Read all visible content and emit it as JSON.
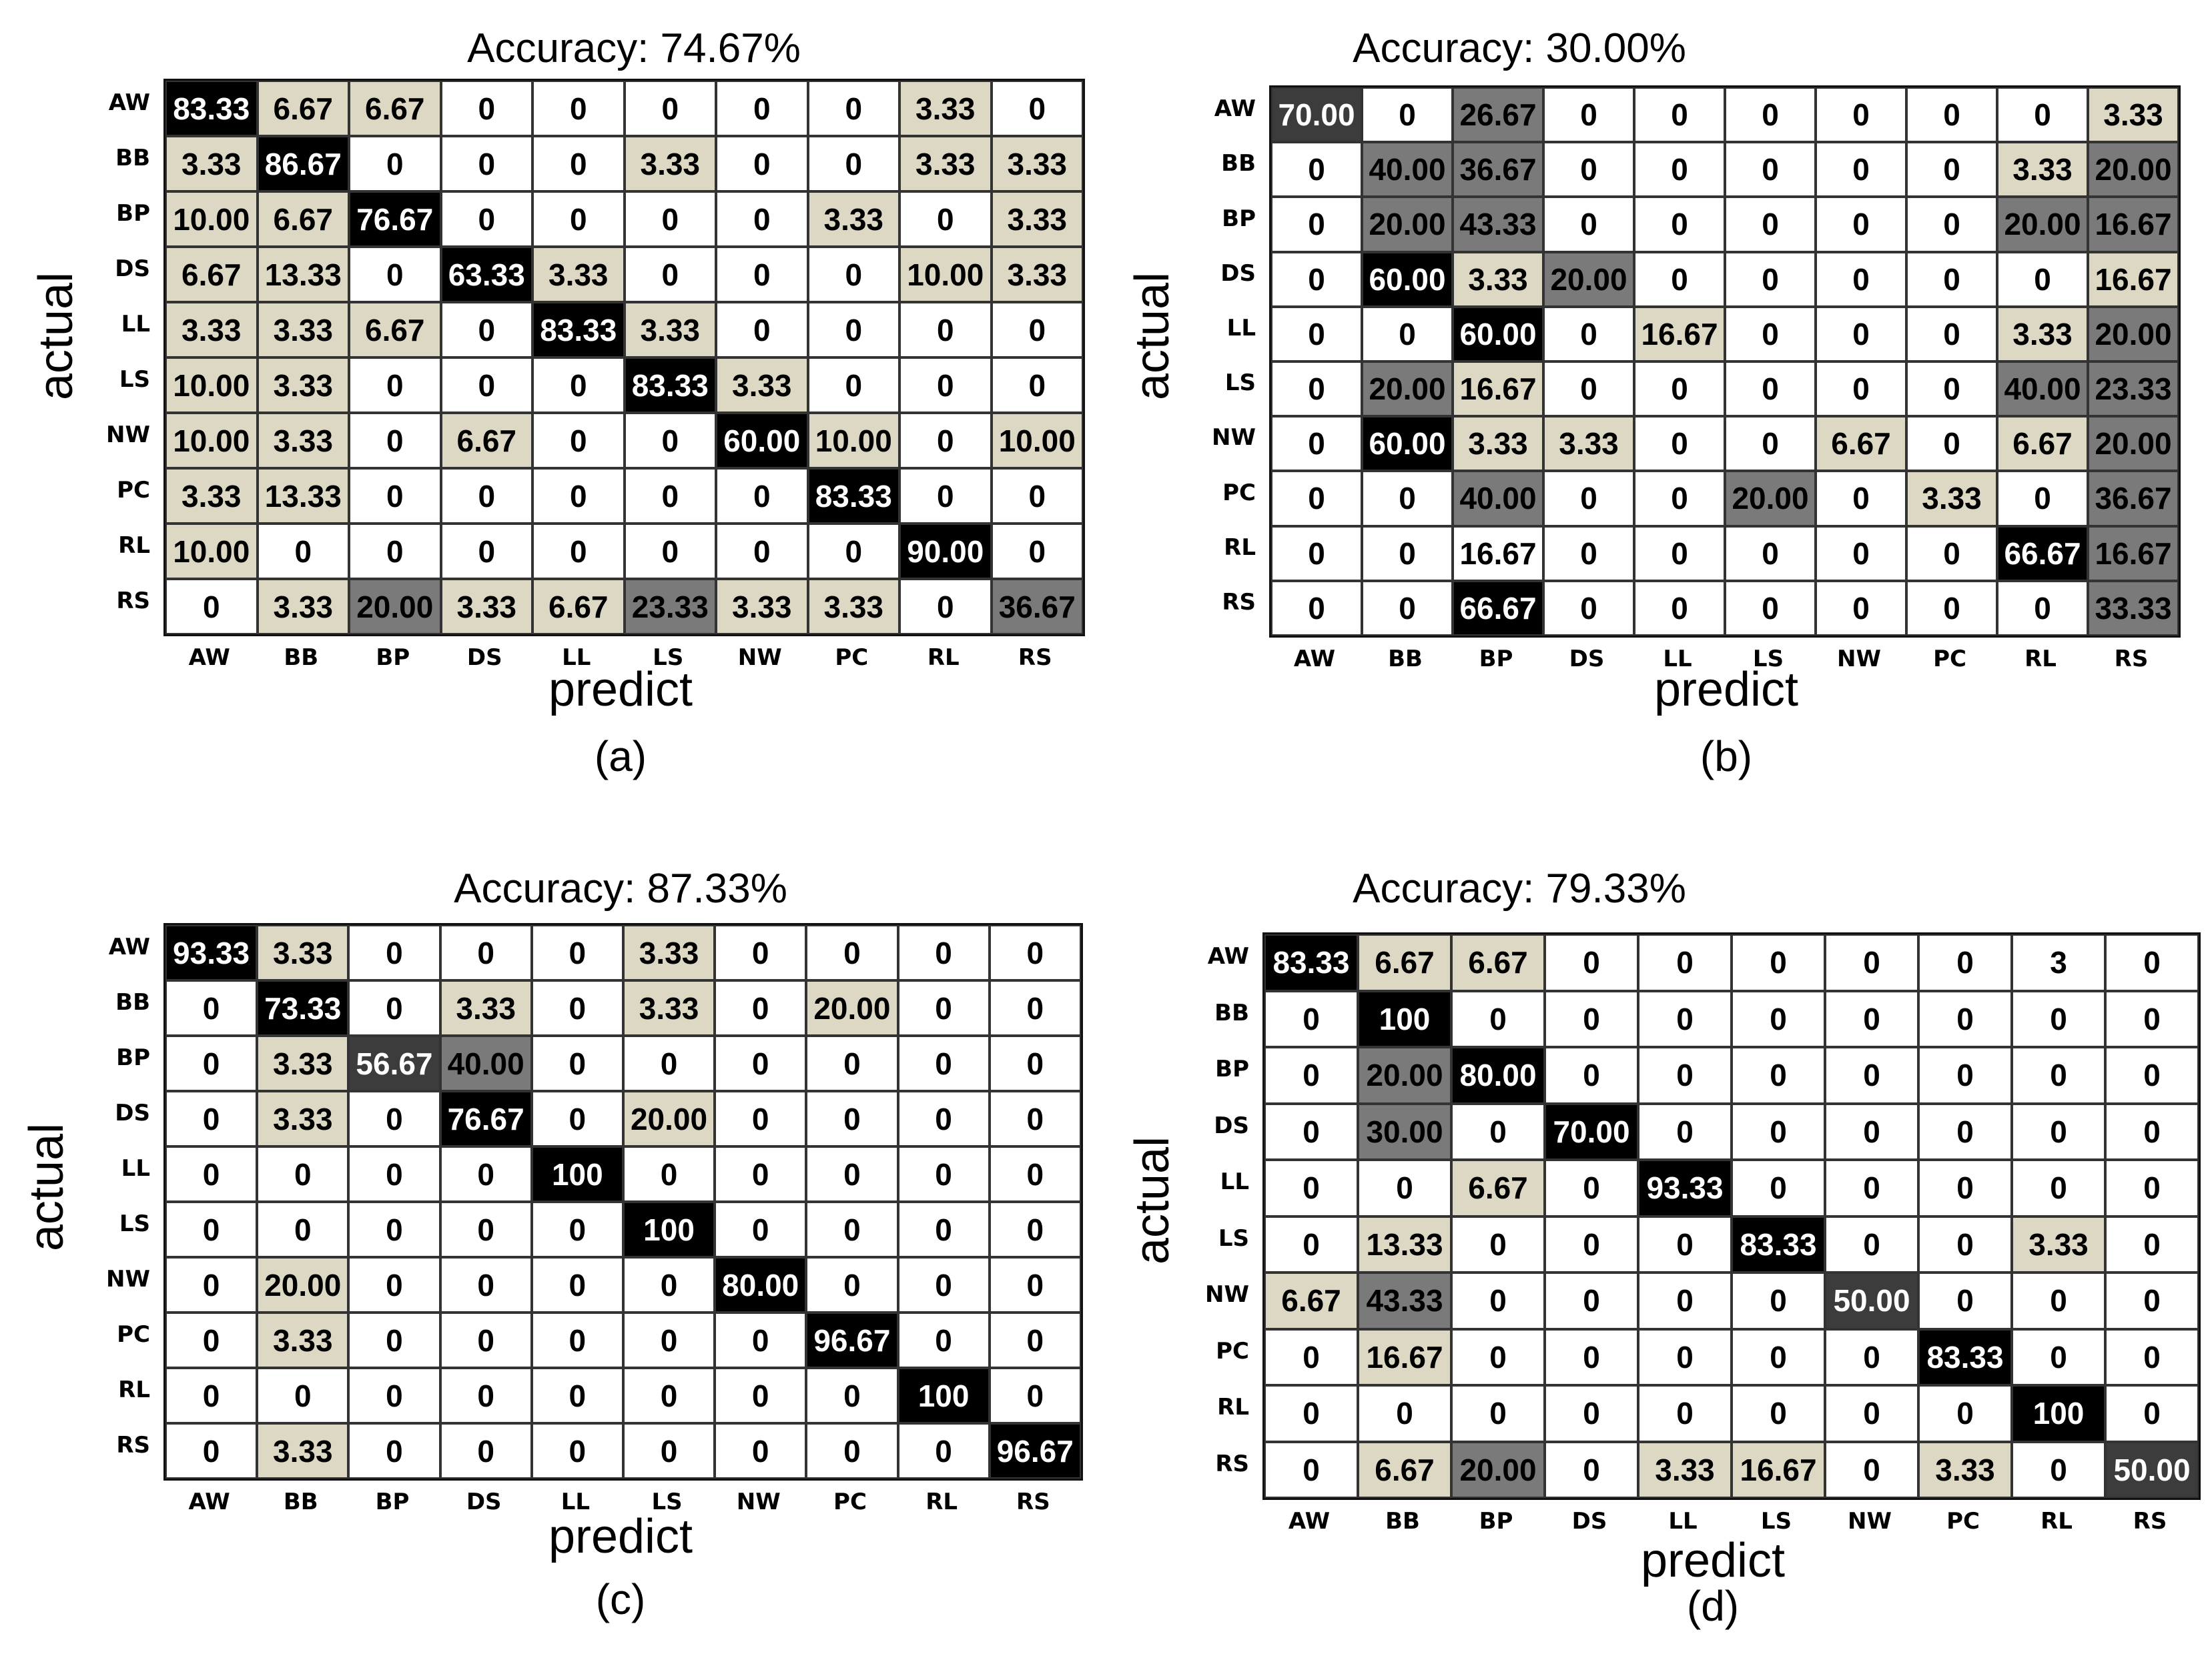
{
  "figure": {
    "labels": [
      "AW",
      "BB",
      "BP",
      "DS",
      "LL",
      "LS",
      "NW",
      "PC",
      "RL",
      "RS"
    ],
    "xlabel": "predict",
    "ylabel": "actual"
  },
  "colors": {
    "white": "#ffffff",
    "light": "#ddd8c4",
    "mid": "#7a7a7a",
    "dark": "#3c3c3c",
    "black": "#000000"
  },
  "chart_data": [
    {
      "type": "heatmap",
      "title": "Accuracy: 74.67%",
      "caption": "(a)",
      "xlabel": "predict",
      "ylabel": "actual",
      "row_labels": [
        "AW",
        "BB",
        "BP",
        "DS",
        "LL",
        "LS",
        "NW",
        "PC",
        "RL",
        "RS"
      ],
      "col_labels": [
        "AW",
        "BB",
        "BP",
        "DS",
        "LL",
        "LS",
        "NW",
        "PC",
        "RL",
        "RS"
      ],
      "values": [
        [
          "83.33",
          "6.67",
          "6.67",
          "0",
          "0",
          "0",
          "0",
          "0",
          "3.33",
          "0"
        ],
        [
          "3.33",
          "86.67",
          "0",
          "0",
          "0",
          "3.33",
          "0",
          "0",
          "3.33",
          "3.33"
        ],
        [
          "10.00",
          "6.67",
          "76.67",
          "0",
          "0",
          "0",
          "0",
          "3.33",
          "0",
          "3.33"
        ],
        [
          "6.67",
          "13.33",
          "0",
          "63.33",
          "3.33",
          "0",
          "0",
          "0",
          "10.00",
          "3.33"
        ],
        [
          "3.33",
          "3.33",
          "6.67",
          "0",
          "83.33",
          "3.33",
          "0",
          "0",
          "0",
          "0"
        ],
        [
          "10.00",
          "3.33",
          "0",
          "0",
          "0",
          "83.33",
          "3.33",
          "0",
          "0",
          "0"
        ],
        [
          "10.00",
          "3.33",
          "0",
          "6.67",
          "0",
          "0",
          "60.00",
          "10.00",
          "0",
          "10.00"
        ],
        [
          "3.33",
          "13.33",
          "0",
          "0",
          "0",
          "0",
          "0",
          "83.33",
          "0",
          "0"
        ],
        [
          "10.00",
          "0",
          "0",
          "0",
          "0",
          "0",
          "0",
          "0",
          "90.00",
          "0"
        ],
        [
          "0",
          "3.33",
          "20.00",
          "3.33",
          "6.67",
          "23.33",
          "3.33",
          "3.33",
          "0",
          "36.67"
        ]
      ],
      "shade": [
        [
          "K",
          "L",
          "L",
          "W",
          "W",
          "W",
          "W",
          "W",
          "L",
          "W"
        ],
        [
          "L",
          "K",
          "W",
          "W",
          "W",
          "L",
          "W",
          "W",
          "L",
          "L"
        ],
        [
          "L",
          "L",
          "K",
          "W",
          "W",
          "W",
          "W",
          "L",
          "W",
          "L"
        ],
        [
          "L",
          "L",
          "W",
          "K",
          "L",
          "W",
          "W",
          "W",
          "L",
          "L"
        ],
        [
          "L",
          "L",
          "L",
          "W",
          "K",
          "L",
          "W",
          "W",
          "W",
          "W"
        ],
        [
          "L",
          "L",
          "W",
          "W",
          "W",
          "K",
          "L",
          "W",
          "W",
          "W"
        ],
        [
          "L",
          "L",
          "W",
          "L",
          "W",
          "W",
          "K",
          "L",
          "W",
          "L"
        ],
        [
          "L",
          "L",
          "W",
          "W",
          "W",
          "W",
          "W",
          "K",
          "W",
          "W"
        ],
        [
          "L",
          "W",
          "W",
          "W",
          "W",
          "W",
          "W",
          "W",
          "K",
          "W"
        ],
        [
          "W",
          "L",
          "M",
          "L",
          "L",
          "M",
          "L",
          "L",
          "W",
          "M"
        ]
      ]
    },
    {
      "type": "heatmap",
      "title": "Accuracy: 30.00%",
      "caption": "(b)",
      "xlabel": "predict",
      "ylabel": "actual",
      "row_labels": [
        "AW",
        "BB",
        "BP",
        "DS",
        "LL",
        "LS",
        "NW",
        "PC",
        "RL",
        "RS"
      ],
      "col_labels": [
        "AW",
        "BB",
        "BP",
        "DS",
        "LL",
        "LS",
        "NW",
        "PC",
        "RL",
        "RS"
      ],
      "values": [
        [
          "70.00",
          "0",
          "26.67",
          "0",
          "0",
          "0",
          "0",
          "0",
          "0",
          "3.33"
        ],
        [
          "0",
          "40.00",
          "36.67",
          "0",
          "0",
          "0",
          "0",
          "0",
          "3.33",
          "20.00"
        ],
        [
          "0",
          "20.00",
          "43.33",
          "0",
          "0",
          "0",
          "0",
          "0",
          "20.00",
          "16.67"
        ],
        [
          "0",
          "60.00",
          "3.33",
          "20.00",
          "0",
          "0",
          "0",
          "0",
          "0",
          "16.67"
        ],
        [
          "0",
          "0",
          "60.00",
          "0",
          "16.67",
          "0",
          "0",
          "0",
          "3.33",
          "20.00"
        ],
        [
          "0",
          "20.00",
          "16.67",
          "0",
          "0",
          "0",
          "0",
          "0",
          "40.00",
          "23.33"
        ],
        [
          "0",
          "60.00",
          "3.33",
          "3.33",
          "0",
          "0",
          "6.67",
          "0",
          "6.67",
          "20.00"
        ],
        [
          "0",
          "0",
          "40.00",
          "0",
          "0",
          "20.00",
          "0",
          "3.33",
          "0",
          "36.67"
        ],
        [
          "0",
          "0",
          "16.67",
          "0",
          "0",
          "0",
          "0",
          "0",
          "66.67",
          "16.67"
        ],
        [
          "0",
          "0",
          "66.67",
          "0",
          "0",
          "0",
          "0",
          "0",
          "0",
          "33.33"
        ]
      ],
      "shade": [
        [
          "D",
          "W",
          "M",
          "W",
          "W",
          "W",
          "W",
          "W",
          "W",
          "L"
        ],
        [
          "W",
          "M",
          "M",
          "W",
          "W",
          "W",
          "W",
          "W",
          "L",
          "M"
        ],
        [
          "W",
          "M",
          "M",
          "W",
          "W",
          "W",
          "W",
          "W",
          "M",
          "M"
        ],
        [
          "W",
          "K",
          "L",
          "M",
          "W",
          "W",
          "W",
          "W",
          "W",
          "L"
        ],
        [
          "W",
          "W",
          "K",
          "W",
          "L",
          "W",
          "W",
          "W",
          "L",
          "M"
        ],
        [
          "W",
          "M",
          "L",
          "W",
          "W",
          "W",
          "W",
          "W",
          "M",
          "M"
        ],
        [
          "W",
          "K",
          "L",
          "L",
          "W",
          "W",
          "L",
          "W",
          "L",
          "M"
        ],
        [
          "W",
          "W",
          "M",
          "W",
          "W",
          "M",
          "W",
          "L",
          "W",
          "M"
        ],
        [
          "W",
          "W",
          "W",
          "W",
          "W",
          "W",
          "W",
          "W",
          "K",
          "M"
        ],
        [
          "W",
          "W",
          "K",
          "W",
          "W",
          "W",
          "W",
          "W",
          "W",
          "M"
        ]
      ]
    },
    {
      "type": "heatmap",
      "title": "Accuracy: 87.33%",
      "caption": "(c)",
      "xlabel": "predict",
      "ylabel": "actual",
      "row_labels": [
        "AW",
        "BB",
        "BP",
        "DS",
        "LL",
        "LS",
        "NW",
        "PC",
        "RL",
        "RS"
      ],
      "col_labels": [
        "AW",
        "BB",
        "BP",
        "DS",
        "LL",
        "LS",
        "NW",
        "PC",
        "RL",
        "RS"
      ],
      "values": [
        [
          "93.33",
          "3.33",
          "0",
          "0",
          "0",
          "3.33",
          "0",
          "0",
          "0",
          "0"
        ],
        [
          "0",
          "73.33",
          "0",
          "3.33",
          "0",
          "3.33",
          "0",
          "20.00",
          "0",
          "0"
        ],
        [
          "0",
          "3.33",
          "56.67",
          "40.00",
          "0",
          "0",
          "0",
          "0",
          "0",
          "0"
        ],
        [
          "0",
          "3.33",
          "0",
          "76.67",
          "0",
          "20.00",
          "0",
          "0",
          "0",
          "0"
        ],
        [
          "0",
          "0",
          "0",
          "0",
          "100",
          "0",
          "0",
          "0",
          "0",
          "0"
        ],
        [
          "0",
          "0",
          "0",
          "0",
          "0",
          "100",
          "0",
          "0",
          "0",
          "0"
        ],
        [
          "0",
          "20.00",
          "0",
          "0",
          "0",
          "0",
          "80.00",
          "0",
          "0",
          "0"
        ],
        [
          "0",
          "3.33",
          "0",
          "0",
          "0",
          "0",
          "0",
          "96.67",
          "0",
          "0"
        ],
        [
          "0",
          "0",
          "0",
          "0",
          "0",
          "0",
          "0",
          "0",
          "100",
          "0"
        ],
        [
          "0",
          "3.33",
          "0",
          "0",
          "0",
          "0",
          "0",
          "0",
          "0",
          "96.67"
        ]
      ],
      "shade": [
        [
          "K",
          "L",
          "W",
          "W",
          "W",
          "L",
          "W",
          "W",
          "W",
          "W"
        ],
        [
          "W",
          "K",
          "W",
          "L",
          "W",
          "L",
          "W",
          "L",
          "W",
          "W"
        ],
        [
          "W",
          "L",
          "D",
          "M",
          "W",
          "W",
          "W",
          "W",
          "W",
          "W"
        ],
        [
          "W",
          "L",
          "W",
          "K",
          "W",
          "L",
          "W",
          "W",
          "W",
          "W"
        ],
        [
          "W",
          "W",
          "W",
          "W",
          "K",
          "W",
          "W",
          "W",
          "W",
          "W"
        ],
        [
          "W",
          "W",
          "W",
          "W",
          "W",
          "K",
          "W",
          "W",
          "W",
          "W"
        ],
        [
          "W",
          "L",
          "W",
          "W",
          "W",
          "W",
          "K",
          "W",
          "W",
          "W"
        ],
        [
          "W",
          "L",
          "W",
          "W",
          "W",
          "W",
          "W",
          "K",
          "W",
          "W"
        ],
        [
          "W",
          "W",
          "W",
          "W",
          "W",
          "W",
          "W",
          "W",
          "K",
          "W"
        ],
        [
          "W",
          "L",
          "W",
          "W",
          "W",
          "W",
          "W",
          "W",
          "W",
          "K"
        ]
      ]
    },
    {
      "type": "heatmap",
      "title": "Accuracy: 79.33%",
      "caption": "(d)",
      "xlabel": "predict",
      "ylabel": "actual",
      "row_labels": [
        "AW",
        "BB",
        "BP",
        "DS",
        "LL",
        "LS",
        "NW",
        "PC",
        "RL",
        "RS"
      ],
      "col_labels": [
        "AW",
        "BB",
        "BP",
        "DS",
        "LL",
        "LS",
        "NW",
        "PC",
        "RL",
        "RS"
      ],
      "values": [
        [
          "83.33",
          "6.67",
          "6.67",
          "0",
          "0",
          "0",
          "0",
          "0",
          "3",
          "0"
        ],
        [
          "0",
          "100",
          "0",
          "0",
          "0",
          "0",
          "0",
          "0",
          "0",
          "0"
        ],
        [
          "0",
          "20.00",
          "80.00",
          "0",
          "0",
          "0",
          "0",
          "0",
          "0",
          "0"
        ],
        [
          "0",
          "30.00",
          "0",
          "70.00",
          "0",
          "0",
          "0",
          "0",
          "0",
          "0"
        ],
        [
          "0",
          "0",
          "6.67",
          "0",
          "93.33",
          "0",
          "0",
          "0",
          "0",
          "0"
        ],
        [
          "0",
          "13.33",
          "0",
          "0",
          "0",
          "83.33",
          "0",
          "0",
          "3.33",
          "0"
        ],
        [
          "6.67",
          "43.33",
          "0",
          "0",
          "0",
          "0",
          "50.00",
          "0",
          "0",
          "0"
        ],
        [
          "0",
          "16.67",
          "0",
          "0",
          "0",
          "0",
          "0",
          "83.33",
          "0",
          "0"
        ],
        [
          "0",
          "0",
          "0",
          "0",
          "0",
          "0",
          "0",
          "0",
          "100",
          "0"
        ],
        [
          "0",
          "6.67",
          "20.00",
          "0",
          "3.33",
          "16.67",
          "0",
          "3.33",
          "0",
          "50.00"
        ]
      ],
      "shade": [
        [
          "K",
          "L",
          "L",
          "W",
          "W",
          "W",
          "W",
          "W",
          "W",
          "W"
        ],
        [
          "W",
          "K",
          "W",
          "W",
          "W",
          "W",
          "W",
          "W",
          "W",
          "W"
        ],
        [
          "W",
          "M",
          "K",
          "W",
          "W",
          "W",
          "W",
          "W",
          "W",
          "W"
        ],
        [
          "W",
          "M",
          "W",
          "K",
          "W",
          "W",
          "W",
          "W",
          "W",
          "W"
        ],
        [
          "W",
          "W",
          "L",
          "W",
          "K",
          "W",
          "W",
          "W",
          "W",
          "W"
        ],
        [
          "W",
          "L",
          "W",
          "W",
          "W",
          "K",
          "W",
          "W",
          "L",
          "W"
        ],
        [
          "L",
          "M",
          "W",
          "W",
          "W",
          "W",
          "D",
          "W",
          "W",
          "W"
        ],
        [
          "W",
          "L",
          "W",
          "W",
          "W",
          "W",
          "W",
          "K",
          "W",
          "W"
        ],
        [
          "W",
          "W",
          "W",
          "W",
          "W",
          "W",
          "W",
          "W",
          "K",
          "W"
        ],
        [
          "W",
          "L",
          "M",
          "W",
          "L",
          "L",
          "W",
          "L",
          "W",
          "D"
        ]
      ]
    }
  ]
}
